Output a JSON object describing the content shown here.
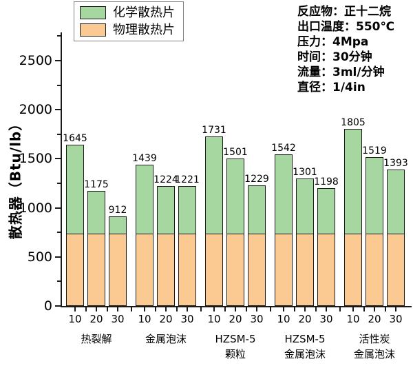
{
  "chart_data": {
    "type": "bar",
    "stacked": true,
    "title": "",
    "xlabel": "",
    "ylabel": "散热器（Btu/lb）",
    "ylim": [
      0,
      2750
    ],
    "yticks": [
      0,
      500,
      1000,
      1500,
      2000,
      2500
    ],
    "yticks_minor": [
      250,
      750,
      1250,
      1750,
      2250,
      2750
    ],
    "grid": false,
    "legend_position": "top-left-inside",
    "series": [
      {
        "name": "化学散热片",
        "color": "#a6d7a1",
        "stack": "top",
        "note": "segment height = bar total minus physical base"
      },
      {
        "name": "物理散热片",
        "color": "#fbc992",
        "stack": "bottom",
        "value_per_bar_est": 730
      }
    ],
    "groups": [
      {
        "label_lines": [
          "热裂解"
        ],
        "x_ticks": [
          "10",
          "20",
          "30"
        ],
        "totals": [
          1645,
          1175,
          912
        ]
      },
      {
        "label_lines": [
          "金属泡沫"
        ],
        "x_ticks": [
          "10",
          "20",
          "30"
        ],
        "totals": [
          1439,
          1224,
          1221
        ]
      },
      {
        "label_lines": [
          "HZSM-5",
          "颗粒"
        ],
        "x_ticks": [
          "10",
          "20",
          "30"
        ],
        "totals": [
          1731,
          1501,
          1229
        ]
      },
      {
        "label_lines": [
          "HZSM-5",
          "金属泡沫"
        ],
        "x_ticks": [
          "10",
          "20",
          "30"
        ],
        "totals": [
          1542,
          1301,
          1198
        ]
      },
      {
        "label_lines": [
          "活性炭",
          "金属泡沫"
        ],
        "x_ticks": [
          "10",
          "20",
          "30"
        ],
        "totals": [
          1805,
          1519,
          1393
        ]
      }
    ]
  },
  "annotation": {
    "lines": [
      "反应物：正十二烷",
      "出口温度：550℃",
      "压力：4Mpa",
      "时间：30分钟",
      "流量：3ml/分钟",
      "直径：1/4in"
    ]
  },
  "colors": {
    "axis": "#1a1a1a",
    "bar_border": "#1a1a1a",
    "legend_border": "#7f7f7f",
    "text": "#000000",
    "background": "#ffffff"
  }
}
